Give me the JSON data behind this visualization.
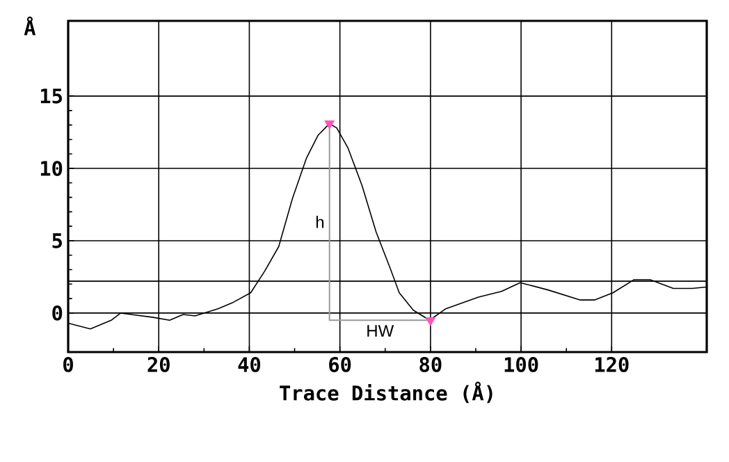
{
  "chart_data": {
    "type": "line",
    "xlabel": "Trace Distance (Å)",
    "ylabel": "Å",
    "xlim": [
      0,
      141
    ],
    "ylim": [
      -2.7,
      20.2
    ],
    "xticks": [
      0,
      20,
      40,
      60,
      80,
      100,
      120
    ],
    "yticks": [
      0,
      5,
      10,
      15
    ],
    "grid": true,
    "series": [
      {
        "color": "#000000",
        "marker": "none",
        "x": [
          0,
          4.9,
          9.5,
          11.6,
          13.9,
          18.8,
          22.4,
          25.4,
          28,
          33.1,
          36.2,
          40.3,
          43.4,
          46.5,
          49.5,
          52.6,
          55.2,
          57.7,
          59.3,
          61.8,
          64.9,
          68,
          71.1,
          73.1,
          76.2,
          79.8,
          83.4,
          90.6,
          95.7,
          99.8,
          105.9,
          113.1,
          116.2,
          120.3,
          124.9,
          128.5,
          133.6,
          137.8,
          141
        ],
        "values": [
          -0.7,
          -1.1,
          -0.5,
          0,
          -0.1,
          -0.3,
          -0.5,
          -0.1,
          -0.2,
          0.3,
          0.7,
          1.4,
          2.9,
          4.6,
          7.9,
          10.7,
          12.3,
          13.1,
          12.8,
          11.4,
          8.8,
          5.6,
          3.1,
          1.4,
          0.2,
          -0.5,
          0.3,
          1.1,
          1.5,
          2.1,
          1.6,
          0.9,
          0.9,
          1.4,
          2.3,
          2.3,
          1.7,
          1.7,
          1.8
        ]
      },
      {
        "type": "scatter",
        "color": "#ff55bb",
        "marker": "triangle",
        "x": [
          57.7,
          80
        ],
        "values": [
          13.1,
          -0.5
        ]
      },
      {
        "type": "line",
        "color": "#999999",
        "marker": "none",
        "x": [
          57.7,
          57.7,
          80
        ],
        "values": [
          13.1,
          -0.5,
          -0.5
        ]
      }
    ],
    "ref_lines": [
      {
        "axis": "y",
        "value": 2.2,
        "color": "#000000"
      }
    ],
    "annotations": [
      "h",
      "HW"
    ]
  }
}
